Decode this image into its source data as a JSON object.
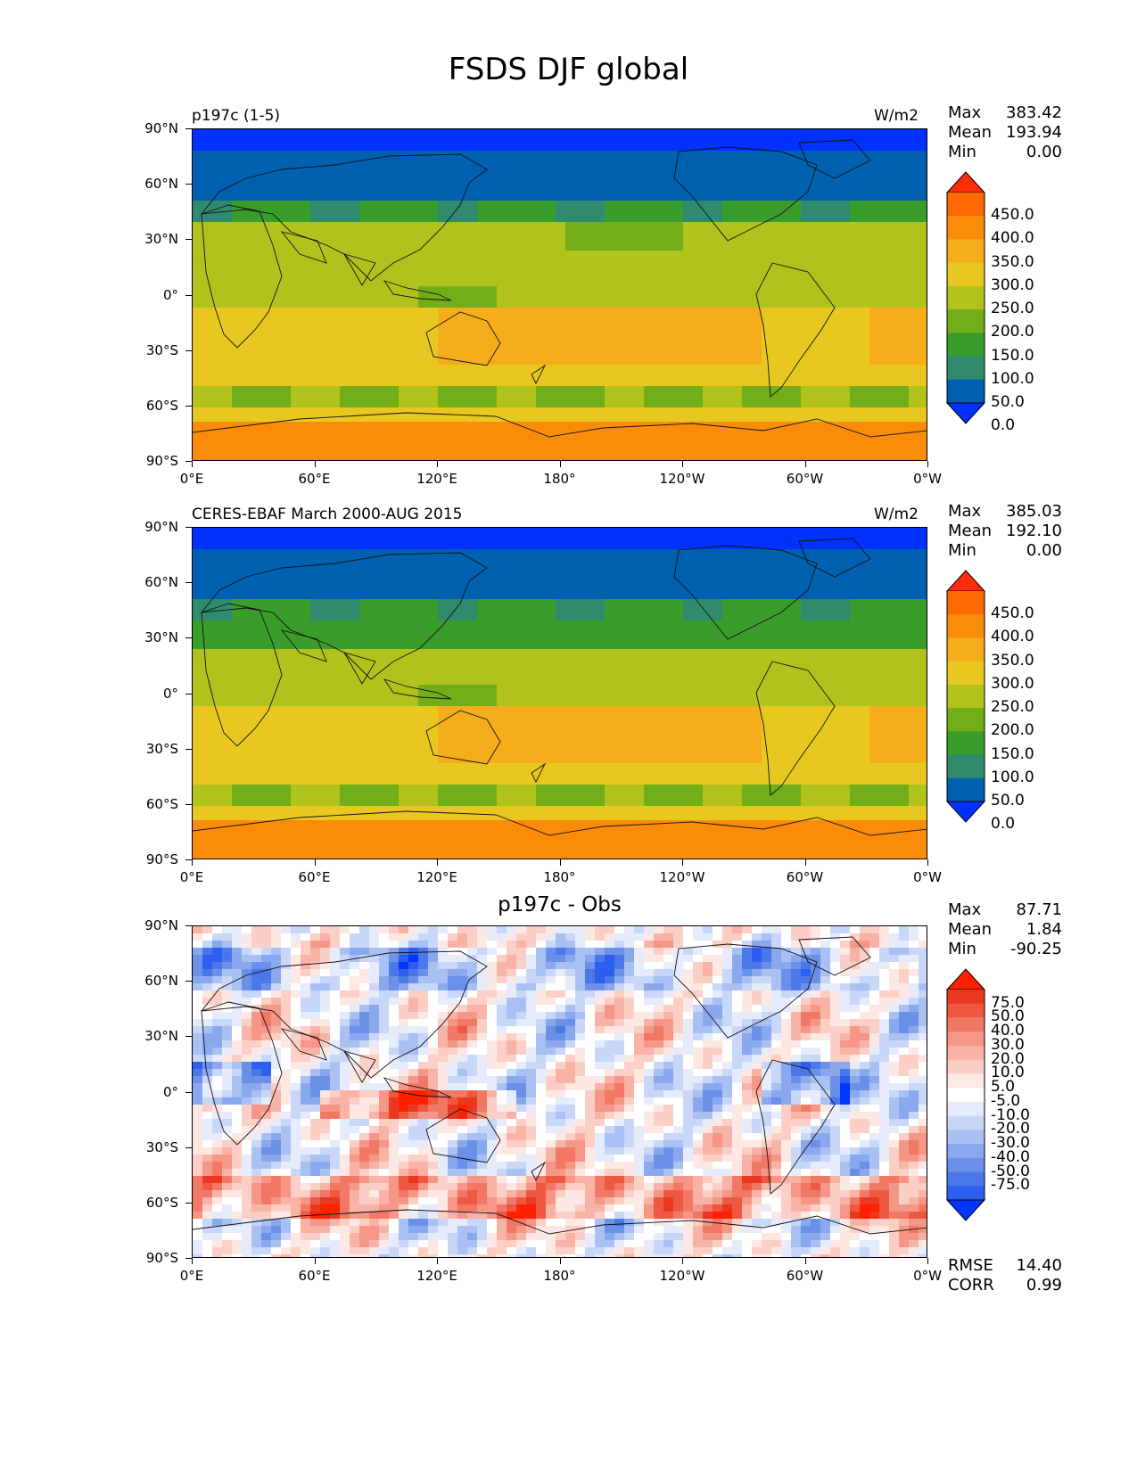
{
  "page": {
    "title": "FSDS DJF global"
  },
  "axes": {
    "y_ticks": [
      "90°N",
      "60°N",
      "30°N",
      "0°",
      "30°S",
      "60°S",
      "90°S"
    ],
    "x_ticks": [
      "0°E",
      "60°E",
      "120°E",
      "180°",
      "120°W",
      "60°W",
      "0°W"
    ]
  },
  "panels": [
    {
      "id": "model",
      "subtitle": "p197c (1-5)",
      "units": "W/m2",
      "center_title": "",
      "stats": [
        {
          "name": "Max",
          "value": "383.42"
        },
        {
          "name": "Mean",
          "value": "193.94"
        },
        {
          "name": "Min",
          "value": "0.00"
        }
      ],
      "colorbar": {
        "labels": [
          "450.0",
          "400.0",
          "350.0",
          "300.0",
          "250.0",
          "200.0",
          "150.0",
          "100.0",
          "50.0",
          "0.0"
        ],
        "colors": [
          "#0031ff",
          "#0060b0",
          "#2f8a6e",
          "#3a9c2a",
          "#72ad1a",
          "#b2c21c",
          "#e8c820",
          "#f5ad1c",
          "#fb8c0a",
          "#ff6a00",
          "#ff2c0a"
        ]
      }
    },
    {
      "id": "obs",
      "subtitle": "CERES-EBAF March 2000-AUG 2015",
      "units": "W/m2",
      "center_title": "",
      "stats": [
        {
          "name": "Max",
          "value": "385.03"
        },
        {
          "name": "Mean",
          "value": "192.10"
        },
        {
          "name": "Min",
          "value": "0.00"
        }
      ],
      "colorbar": {
        "labels": [
          "450.0",
          "400.0",
          "350.0",
          "300.0",
          "250.0",
          "200.0",
          "150.0",
          "100.0",
          "50.0",
          "0.0"
        ],
        "colors": [
          "#0031ff",
          "#0060b0",
          "#2f8a6e",
          "#3a9c2a",
          "#72ad1a",
          "#b2c21c",
          "#e8c820",
          "#f5ad1c",
          "#fb8c0a",
          "#ff6a00",
          "#ff2c0a"
        ]
      }
    },
    {
      "id": "diff",
      "subtitle": "",
      "units": "",
      "center_title": "p197c - Obs",
      "stats": [
        {
          "name": "Max",
          "value": "87.71"
        },
        {
          "name": "Mean",
          "value": "1.84"
        },
        {
          "name": "Min",
          "value": "-90.25"
        }
      ],
      "colorbar": {
        "labels": [
          "75.0",
          "50.0",
          "40.0",
          "30.0",
          "20.0",
          "10.0",
          "5.0",
          "-5.0",
          "-10.0",
          "-20.0",
          "-30.0",
          "-40.0",
          "-50.0",
          "-75.0"
        ],
        "colors": [
          "#0036ff",
          "#2c5ff0",
          "#4a78e8",
          "#6a90e8",
          "#8aa8ee",
          "#a9c0f3",
          "#c8d6f8",
          "#e6ecfc",
          "#ffffff",
          "#fde8e4",
          "#fbcfc6",
          "#f8b3a6",
          "#f59686",
          "#f27866",
          "#ee5840",
          "#ea3820",
          "#ff2000"
        ]
      },
      "footer_stats": [
        {
          "name": "RMSE",
          "value": "14.40"
        },
        {
          "name": "CORR",
          "value": "0.99"
        }
      ]
    }
  ]
}
